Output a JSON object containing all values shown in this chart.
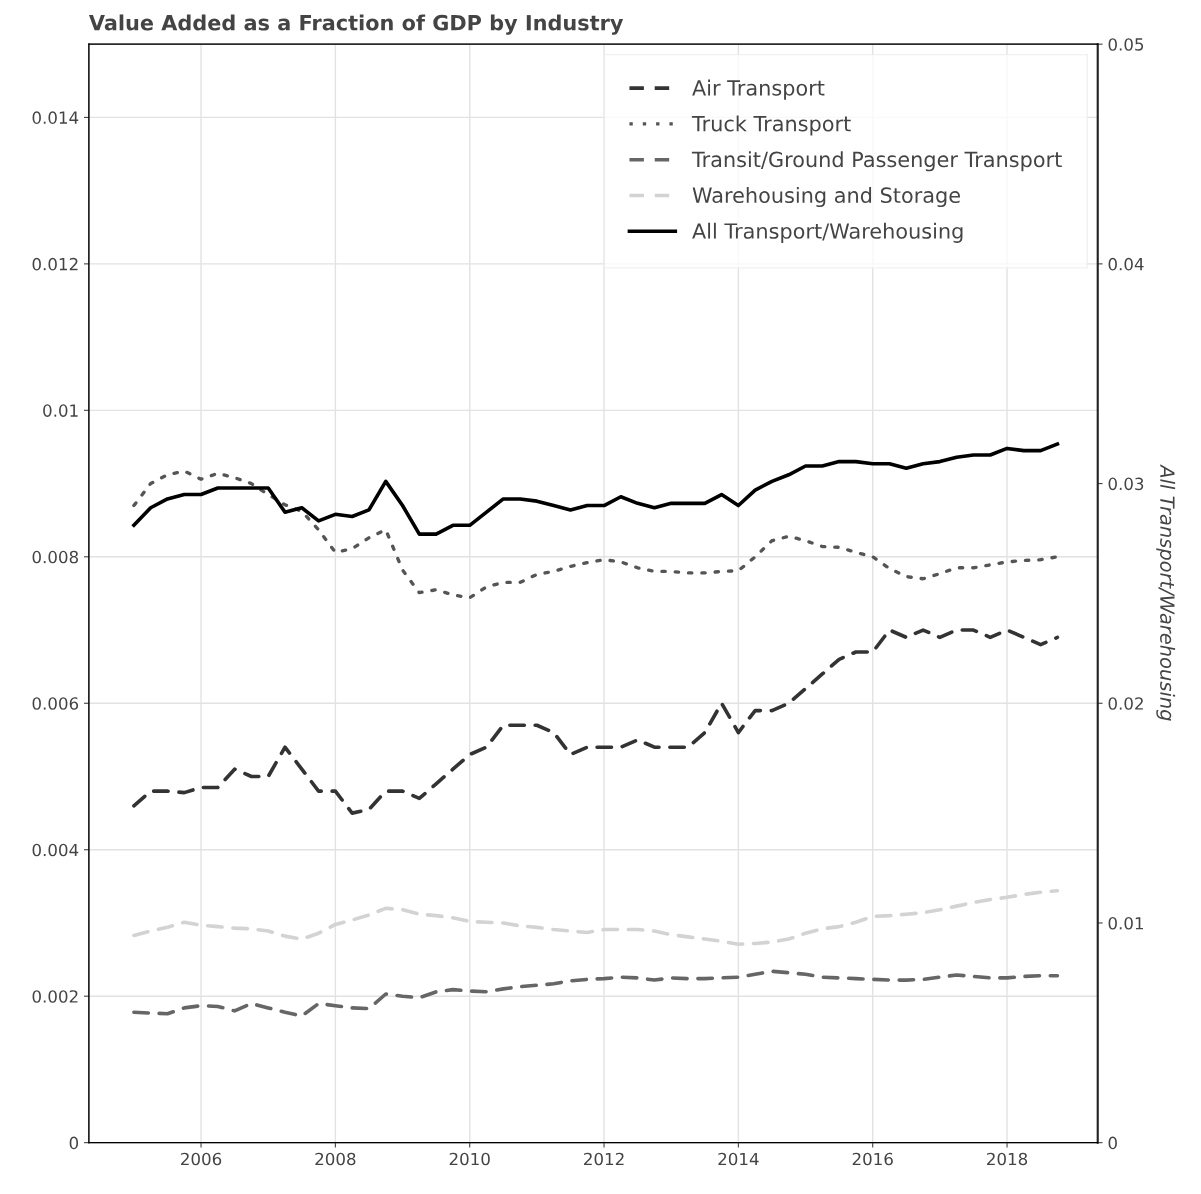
{
  "chart_data": {
    "type": "line",
    "title": "Value Added as a Fraction of GDP by Industry",
    "y2label": "All Transport/Warehousing",
    "x": [
      2005.0,
      2005.25,
      2005.5,
      2005.75,
      2006.0,
      2006.25,
      2006.5,
      2006.75,
      2007.0,
      2007.25,
      2007.5,
      2007.75,
      2008.0,
      2008.25,
      2008.5,
      2008.75,
      2009.0,
      2009.25,
      2009.5,
      2009.75,
      2010.0,
      2010.25,
      2010.5,
      2010.75,
      2011.0,
      2011.25,
      2011.5,
      2011.75,
      2012.0,
      2012.25,
      2012.5,
      2012.75,
      2013.0,
      2013.25,
      2013.5,
      2013.75,
      2014.0,
      2014.25,
      2014.5,
      2014.75,
      2015.0,
      2015.25,
      2015.5,
      2015.75,
      2016.0,
      2016.25,
      2016.5,
      2016.75,
      2017.0,
      2017.25,
      2017.5,
      2017.75,
      2018.0,
      2018.25,
      2018.5,
      2018.75
    ],
    "series": [
      {
        "name": "Air Transport",
        "color": "#333333",
        "line_style": "dashed",
        "values": [
          0.0046,
          0.0048,
          0.0048,
          0.00478,
          0.00485,
          0.00485,
          0.0051,
          0.005,
          0.005,
          0.0054,
          0.0051,
          0.0048,
          0.0048,
          0.0045,
          0.00455,
          0.0048,
          0.0048,
          0.0047,
          0.0049,
          0.0051,
          0.0053,
          0.0054,
          0.0057,
          0.0057,
          0.0057,
          0.0056,
          0.0053,
          0.0054,
          0.0054,
          0.0054,
          0.0055,
          0.0054,
          0.0054,
          0.0054,
          0.0056,
          0.006,
          0.0056,
          0.0059,
          0.0059,
          0.006,
          0.0062,
          0.0064,
          0.0066,
          0.0067,
          0.0067,
          0.007,
          0.0069,
          0.007,
          0.0069,
          0.007,
          0.007,
          0.0069,
          0.007,
          0.0069,
          0.0068,
          0.0069
        ]
      },
      {
        "name": "Truck Transport",
        "color": "#555555",
        "line_style": "dotted",
        "values": [
          0.0087,
          0.009,
          0.00912,
          0.00917,
          0.00906,
          0.00914,
          0.00908,
          0.009,
          0.00885,
          0.00871,
          0.00862,
          0.00837,
          0.00806,
          0.00811,
          0.00826,
          0.00837,
          0.00782,
          0.00751,
          0.00755,
          0.00748,
          0.00744,
          0.00759,
          0.00765,
          0.00765,
          0.00776,
          0.0078,
          0.00787,
          0.00792,
          0.00796,
          0.00793,
          0.00785,
          0.0078,
          0.0078,
          0.00778,
          0.00778,
          0.0078,
          0.00781,
          0.008,
          0.00822,
          0.00828,
          0.00822,
          0.00814,
          0.00813,
          0.00806,
          0.008,
          0.00784,
          0.00773,
          0.0077,
          0.00777,
          0.00785,
          0.00785,
          0.00789,
          0.00793,
          0.00795,
          0.00796,
          0.008
        ]
      },
      {
        "name": "Transit/Ground Passenger Transport",
        "color": "#666666",
        "line_style": "dashed",
        "values": [
          0.00178,
          0.00177,
          0.00176,
          0.00184,
          0.00187,
          0.00186,
          0.0018,
          0.0019,
          0.00184,
          0.00178,
          0.00173,
          0.0019,
          0.00187,
          0.00184,
          0.00183,
          0.00203,
          0.002,
          0.00198,
          0.00206,
          0.00209,
          0.00207,
          0.00206,
          0.0021,
          0.00213,
          0.00215,
          0.00217,
          0.00221,
          0.00223,
          0.00224,
          0.00226,
          0.00225,
          0.00222,
          0.00225,
          0.00224,
          0.00224,
          0.00225,
          0.00226,
          0.0023,
          0.00234,
          0.00232,
          0.0023,
          0.00226,
          0.00225,
          0.00224,
          0.00223,
          0.00222,
          0.00222,
          0.00223,
          0.00226,
          0.00229,
          0.00227,
          0.00225,
          0.00225,
          0.00227,
          0.00228,
          0.00228
        ]
      },
      {
        "name": "Warehousing and Storage",
        "color": "#d3d3d3",
        "line_style": "dashed",
        "values": [
          0.00283,
          0.00289,
          0.00294,
          0.00301,
          0.00297,
          0.00295,
          0.00293,
          0.00292,
          0.00289,
          0.00282,
          0.00278,
          0.00286,
          0.00298,
          0.00304,
          0.00311,
          0.0032,
          0.00318,
          0.00312,
          0.0031,
          0.00307,
          0.00302,
          0.00301,
          0.003,
          0.00296,
          0.00294,
          0.00291,
          0.00289,
          0.00287,
          0.00291,
          0.00291,
          0.00291,
          0.00289,
          0.00284,
          0.00281,
          0.00278,
          0.00275,
          0.00271,
          0.00272,
          0.00274,
          0.00278,
          0.00286,
          0.00292,
          0.00295,
          0.00301,
          0.00309,
          0.0031,
          0.00312,
          0.00314,
          0.00318,
          0.00323,
          0.00328,
          0.00332,
          0.00335,
          0.00339,
          0.00342,
          0.00344
        ]
      },
      {
        "name": "All Transport/Warehousing",
        "color": "#000000",
        "line_style": "solid",
        "axis": "y2",
        "values": [
          0.0281,
          0.0289,
          0.0293,
          0.0295,
          0.0295,
          0.0298,
          0.0298,
          0.0298,
          0.0298,
          0.0287,
          0.0289,
          0.0283,
          0.0286,
          0.0285,
          0.0288,
          0.0301,
          0.029,
          0.0277,
          0.0277,
          0.0281,
          0.0281,
          0.0287,
          0.0293,
          0.0293,
          0.0292,
          0.029,
          0.0288,
          0.029,
          0.029,
          0.0294,
          0.0291,
          0.0289,
          0.0291,
          0.0291,
          0.0291,
          0.0295,
          0.029,
          0.0297,
          0.0301,
          0.0304,
          0.0308,
          0.0308,
          0.031,
          0.031,
          0.0309,
          0.0309,
          0.0307,
          0.0309,
          0.031,
          0.0312,
          0.0313,
          0.0313,
          0.0316,
          0.0315,
          0.0315,
          0.0318
        ]
      }
    ],
    "xlim": [
      2004.33,
      2019.35
    ],
    "xticks": [
      2006,
      2008,
      2010,
      2012,
      2014,
      2016,
      2018
    ],
    "ylim": [
      0,
      0.015
    ],
    "yticks": [
      0,
      0.002,
      0.004,
      0.006,
      0.008,
      0.01,
      0.012,
      0.014
    ],
    "y2lim": [
      0,
      0.05
    ],
    "y2ticks": [
      0,
      0.01,
      0.02,
      0.03,
      0.04,
      0.05
    ],
    "grid": true,
    "legend": "top right"
  }
}
